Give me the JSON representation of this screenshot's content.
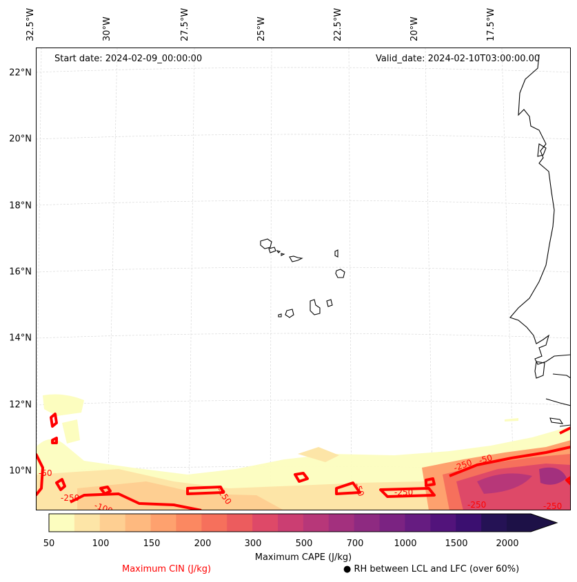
{
  "map": {
    "start_date": "Start date: 2024-02-09_00:00:00",
    "valid_date": "Valid_date: 2024-02-10T03:00:00.00",
    "lon_labels": [
      "32.5°W",
      "30°W",
      "27.5°W",
      "25°W",
      "22.5°W",
      "20°W",
      "17.5°W"
    ],
    "lat_labels": [
      "22°N",
      "20°N",
      "18°N",
      "16°N",
      "14°N",
      "12°N",
      "10°N"
    ],
    "region": "Cape Verde islands and West African coast",
    "cin_contour_labels": [
      "-50",
      "-250",
      "-100",
      "-250",
      "-50",
      "-250",
      "-250",
      "-250",
      "-50",
      "-250"
    ]
  },
  "colorbar": {
    "title": "Maximum CAPE (J/kg)",
    "tick_labels": [
      "50",
      "100",
      "150",
      "200",
      "300",
      "500",
      "700",
      "1000",
      "1500",
      "2000"
    ],
    "colors": [
      "#fcfdbf",
      "#fde5a7",
      "#fecf92",
      "#feb97f",
      "#fea16e",
      "#fb8861",
      "#f6705c",
      "#ec5c5e",
      "#de4968",
      "#cb3e72",
      "#b73779",
      "#a3307e",
      "#8e2a81",
      "#7b2382",
      "#661c81",
      "#52137b",
      "#3b0f70",
      "#251255",
      "#1d1147"
    ]
  },
  "legend": {
    "cin_label": "Maximum CIN (J/kg)",
    "cin_color": "#ff0000",
    "rh_label": "● RH between LCL and LFC (over 60%)"
  }
}
